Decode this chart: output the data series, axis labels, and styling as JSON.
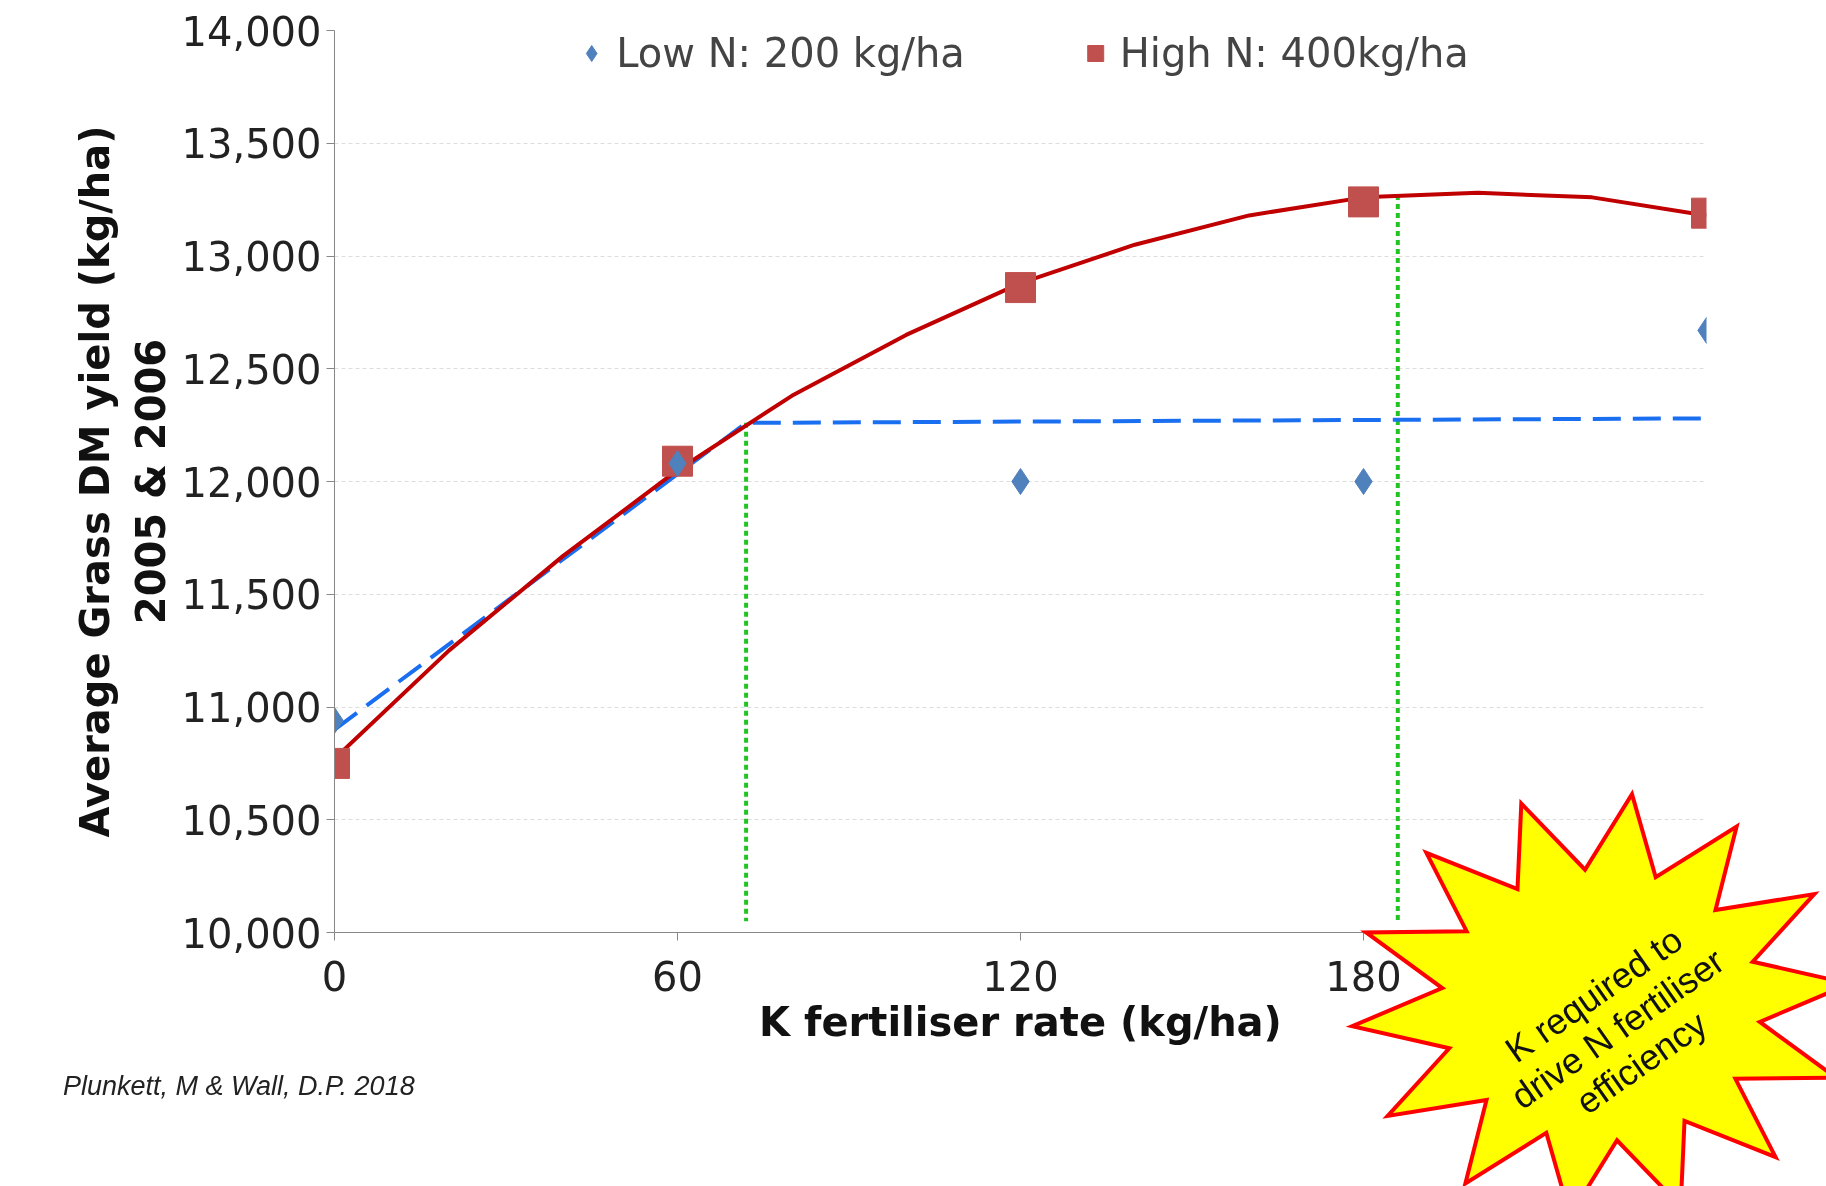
{
  "chart_data": {
    "type": "scatter",
    "xlabel": "K fertiliser rate (kg/ha)",
    "ylabel": "Average Grass DM yield (kg/ha)\n2005 & 2006",
    "annotations": [
      "Plunkett, M & Wall, D.P. 2018",
      "K required to drive N fertiliser efficiency"
    ],
    "xlim": [
      0,
      240
    ],
    "xticks": [
      0,
      60,
      120,
      180
    ],
    "ylim": [
      10000,
      14000
    ],
    "yticks": [
      {
        "value": 10000,
        "label": "10,000"
      },
      {
        "value": 10500,
        "label": "10,500"
      },
      {
        "value": 11000,
        "label": "11,000"
      },
      {
        "value": 11500,
        "label": "11,500"
      },
      {
        "value": 12000,
        "label": "12,000"
      },
      {
        "value": 12500,
        "label": "12,500"
      },
      {
        "value": 13000,
        "label": "13,000"
      },
      {
        "value": 13500,
        "label": "13,500"
      },
      {
        "value": 14000,
        "label": "14,000"
      }
    ],
    "grid": "y",
    "legend": "top",
    "series": [
      {
        "name": "Low N: 200 kg/ha",
        "marker": "diamond",
        "color": "#4f81bd",
        "x": [
          0,
          60,
          120,
          180,
          240
        ],
        "values": [
          10940,
          12080,
          12000,
          12000,
          12670
        ]
      },
      {
        "name": "High N: 400kg/ha",
        "marker": "square",
        "color": "#c0504d",
        "x": [
          0,
          60,
          120,
          180,
          240
        ],
        "values": [
          10750,
          12090,
          12860,
          13240,
          13190
        ]
      },
      {
        "type": "line",
        "color": "#c00000",
        "x": [
          0,
          20,
          40,
          60,
          80,
          100,
          120,
          140,
          160,
          180,
          200,
          220,
          240
        ],
        "values": [
          10770,
          11250,
          11670,
          12050,
          12380,
          12650,
          12880,
          13050,
          13180,
          13260,
          13280,
          13260,
          13180
        ]
      },
      {
        "type": "line",
        "line_style": "dashed",
        "color": "#1a6ff0",
        "x": [
          0,
          72,
          240
        ],
        "values": [
          10900,
          12260,
          12280
        ]
      },
      {
        "type": "line",
        "line_style": "dotted",
        "color": "#22c422",
        "x": [
          72,
          72
        ],
        "values": [
          12260,
          10050
        ]
      },
      {
        "type": "line",
        "line_style": "dotted",
        "color": "#22c422",
        "x": [
          186,
          186
        ],
        "values": [
          13270,
          10050
        ]
      }
    ]
  }
}
